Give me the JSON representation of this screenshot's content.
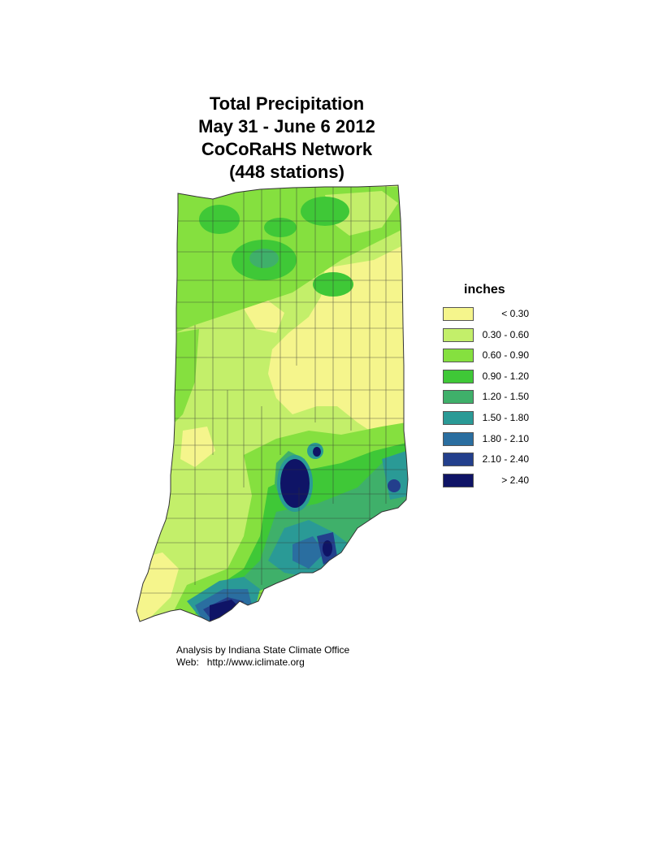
{
  "title": {
    "line1": "Total Precipitation",
    "line2": "May 31 - June 6 2012",
    "line3": "CoCoRaHS Network",
    "line4": "(448 stations)"
  },
  "legend": {
    "title": "inches",
    "items": [
      {
        "label": "< 0.30",
        "color": "#f5f58c"
      },
      {
        "label": "0.30 - 0.60",
        "color": "#c3ef6a"
      },
      {
        "label": "0.60 - 0.90",
        "color": "#85e03f"
      },
      {
        "label": "0.90 - 1.20",
        "color": "#3fc837"
      },
      {
        "label": "1.20 - 1.50",
        "color": "#3fb06a"
      },
      {
        "label": "1.50 - 1.80",
        "color": "#2a9a96"
      },
      {
        "label": "1.80 - 2.10",
        "color": "#2a6ea0"
      },
      {
        "label": "2.10 - 2.40",
        "color": "#233f8c"
      },
      {
        "label": "> 2.40",
        "color": "#0f1466"
      }
    ]
  },
  "credit": {
    "line1": "Analysis by Indiana State Climate Office",
    "line2": "Web:   http://www.iclimate.org"
  }
}
